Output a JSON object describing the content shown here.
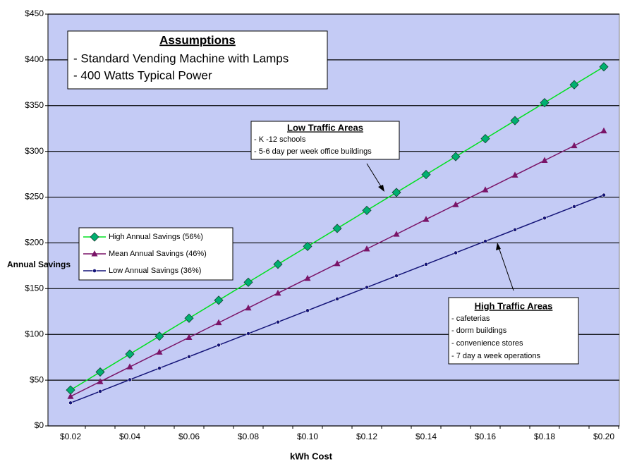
{
  "chart_data": {
    "type": "line",
    "x_label": "kWh Cost",
    "y_label": "Annual Savings",
    "categories": [
      "$0.02",
      null,
      "$0.04",
      null,
      "$0.06",
      null,
      "$0.08",
      null,
      "$0.10",
      null,
      "$0.12",
      null,
      "$0.14",
      null,
      "$0.16",
      null,
      "$0.18",
      null,
      "$0.20"
    ],
    "series": [
      {
        "name": "High Annual Savings (56%)",
        "color": "#00e020",
        "marker_color": "#00b070",
        "marker": "diamond",
        "values": [
          39.2,
          58.9,
          78.5,
          98.1,
          117.7,
          137.3,
          157.0,
          176.6,
          196.2,
          215.8,
          235.5,
          255.1,
          274.7,
          294.3,
          313.9,
          333.6,
          353.2,
          372.8,
          392.4
        ]
      },
      {
        "name": "Mean Annual Savings (46%)",
        "color": "#7a1468",
        "marker_color": "#7a1468",
        "marker": "triangle",
        "values": [
          32.2,
          48.4,
          64.5,
          80.6,
          96.7,
          112.8,
          128.9,
          145.1,
          161.2,
          177.3,
          193.4,
          209.5,
          225.7,
          241.8,
          257.9,
          274.0,
          290.1,
          306.2,
          322.4
        ]
      },
      {
        "name": "Low Annual Savings (36%)",
        "color": "#141478",
        "marker_color": "#141478",
        "marker": "circle",
        "values": [
          25.2,
          37.8,
          50.5,
          63.1,
          75.7,
          88.3,
          100.9,
          113.5,
          126.1,
          138.8,
          151.4,
          164.0,
          176.6,
          189.2,
          201.8,
          214.4,
          227.1,
          239.7,
          252.3
        ]
      }
    ],
    "ylim": [
      0,
      450
    ],
    "yticks": [
      {
        "value": 0,
        "label": "$0"
      },
      {
        "value": 50,
        "label": "$50"
      },
      {
        "value": 100,
        "label": "$100"
      },
      {
        "value": 150,
        "label": "$150"
      },
      {
        "value": 200,
        "label": "$200"
      },
      {
        "value": 250,
        "label": "$250"
      },
      {
        "value": 300,
        "label": "$300"
      },
      {
        "value": 350,
        "label": "$350"
      },
      {
        "value": 400,
        "label": "$400"
      },
      {
        "value": 450,
        "label": "$450"
      }
    ],
    "grid": true,
    "plot_background": "#c4cbf5",
    "legend_position": "left",
    "annotations": {
      "assumptions": {
        "title": "Assumptions",
        "lines": [
          "- Standard Vending Machine with Lamps",
          "- 400 Watts Typical Power"
        ]
      },
      "low_traffic": {
        "title": "Low Traffic Areas",
        "lines": [
          "- K -12 schools",
          "- 5-6 day per week office buildings"
        ]
      },
      "high_traffic": {
        "title": "High Traffic Areas",
        "lines": [
          "- cafeterias",
          "- dorm buildings",
          "- convenience stores",
          "- 7 day a week operations"
        ]
      }
    }
  }
}
